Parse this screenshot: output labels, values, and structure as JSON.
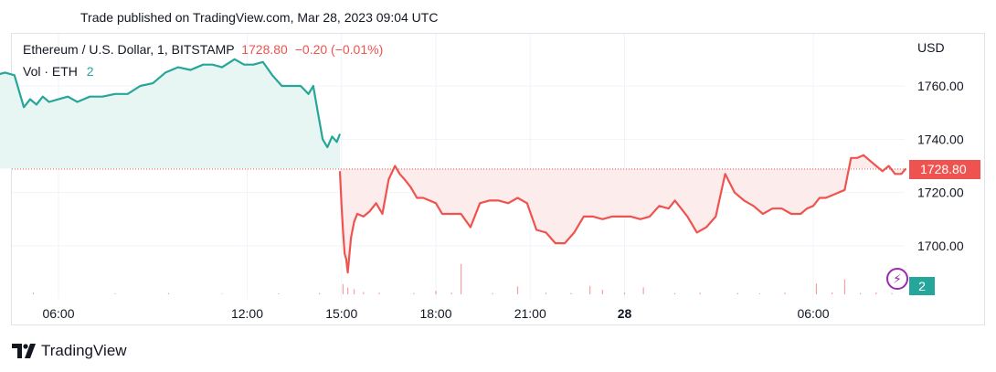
{
  "header": {
    "publish_text": "Trade published on TradingView.com, Mar 28, 2023 09:04 UTC"
  },
  "legend": {
    "symbol": "Ethereum / U.S. Dollar, 1, BITSTAMP",
    "price": "1728.80",
    "change": "−0.20 (−0.01%)",
    "vol_label": "Vol · ETH",
    "vol_value": "2"
  },
  "axis": {
    "currency": "USD"
  },
  "price_tag": "1728.80",
  "vol_tag": "2",
  "brand": {
    "name": "TradingView",
    "icon": "tradingview-logo-icon"
  },
  "indicator_icon": "lightning-icon",
  "colors": {
    "up": "#26a69a",
    "down": "#ef5350",
    "area_up": "#e7f5f3",
    "area_down": "#fdecec",
    "grid": "#f0f3fa",
    "accent": "#9c27b0"
  },
  "chart_data": {
    "type": "line",
    "title": "Ethereum / U.S. Dollar, 1, BITSTAMP",
    "xlabel": "",
    "ylabel": "USD",
    "ylim": [
      1682,
      1774
    ],
    "yticks": [
      1700,
      1720,
      1740,
      1760
    ],
    "ytick_labels": [
      "1700.00",
      "1720.00",
      "1740.00",
      "1760.00"
    ],
    "xticks": [
      {
        "label": "06:00",
        "time": "Mar 27 06:00",
        "hour": 6
      },
      {
        "label": "12:00",
        "time": "Mar 27 12:00",
        "hour": 12
      },
      {
        "label": "15:00",
        "time": "Mar 27 15:00",
        "hour": 15
      },
      {
        "label": "18:00",
        "time": "Mar 27 18:00",
        "hour": 18
      },
      {
        "label": "21:00",
        "time": "Mar 27 21:00",
        "hour": 21
      },
      {
        "label": "28",
        "time": "Mar 28 00:00",
        "hour": 24
      },
      {
        "label": "06:00",
        "time": "Mar 28 06:00",
        "hour": 30
      }
    ],
    "baseline": 1729.0,
    "last_price": 1728.8,
    "series": [
      {
        "x_hours": [
          3.5,
          3.8,
          4.0,
          4.3,
          4.6,
          4.9,
          5.1,
          5.3,
          5.5,
          5.7,
          6.0,
          6.3,
          6.6,
          7.0,
          7.4,
          7.8,
          8.2,
          8.6,
          9.0,
          9.4,
          9.8,
          10.2,
          10.6,
          10.9,
          11.2,
          11.6,
          11.9,
          12.2,
          12.5,
          12.8,
          13.1,
          13.4,
          13.7,
          13.95,
          14.1,
          14.25,
          14.4,
          14.55,
          14.7,
          14.85,
          14.95
        ],
        "values": [
          1769,
          1767,
          1764,
          1765,
          1764,
          1752,
          1755,
          1753,
          1756,
          1754,
          1755,
          1756,
          1754,
          1756,
          1756,
          1757,
          1757,
          1760,
          1761,
          1765,
          1767,
          1766,
          1768,
          1768,
          1767,
          1770,
          1768,
          1768,
          1769,
          1764,
          1760,
          1760,
          1760,
          1757,
          1760,
          1750,
          1740,
          1737,
          1741,
          1739,
          1742
        ]
      },
      {
        "x_hours": [
          14.95,
          15.0,
          15.05,
          15.1,
          15.15,
          15.2,
          15.3,
          15.4,
          15.5,
          15.7,
          15.9,
          16.1,
          16.3,
          16.5,
          16.7,
          16.85,
          17.0,
          17.2,
          17.4,
          17.6,
          17.8,
          18.0,
          18.2,
          18.5,
          18.8,
          19.1,
          19.4,
          19.7,
          20.0,
          20.3,
          20.6,
          20.9,
          21.2,
          21.5,
          21.8,
          22.1,
          22.4,
          22.7,
          23.0,
          23.3,
          23.6,
          23.9,
          24.2,
          24.5,
          24.8,
          25.1,
          25.4,
          25.6,
          25.8,
          26.0,
          26.3,
          26.6,
          26.9,
          27.2,
          27.5,
          27.8,
          28.1,
          28.4,
          28.7,
          29.0,
          29.3,
          29.6,
          29.8,
          30.0,
          30.2,
          30.4,
          30.6,
          30.8,
          31.0,
          31.2,
          31.4,
          31.6,
          31.8,
          32.0,
          32.2,
          32.4,
          32.6,
          32.8,
          32.95
        ],
        "values": [
          1728,
          1715,
          1705,
          1697,
          1695,
          1690,
          1703,
          1709,
          1712,
          1711,
          1713,
          1716,
          1712,
          1725,
          1730,
          1727,
          1725,
          1722,
          1718,
          1718,
          1717,
          1716,
          1712,
          1712,
          1712,
          1707,
          1716,
          1717,
          1717,
          1716,
          1718,
          1716,
          1706,
          1705,
          1701,
          1701,
          1705,
          1711,
          1711,
          1710,
          1711,
          1711,
          1711,
          1710,
          1711,
          1715,
          1714,
          1717,
          1714,
          1711,
          1705,
          1707,
          1711,
          1727,
          1720,
          1717,
          1715,
          1712,
          1714,
          1714,
          1712,
          1712,
          1714,
          1715,
          1718,
          1718,
          1719,
          1720,
          1721,
          1733,
          1733,
          1734,
          1732,
          1730,
          1728,
          1730,
          1727,
          1727,
          1729
        ]
      }
    ],
    "volume": {
      "x_hours": [
        4.0,
        5.2,
        7.8,
        9.5,
        11.2,
        13.0,
        14.3,
        15.05,
        15.2,
        15.4,
        15.7,
        16.2,
        17.3,
        18.0,
        18.5,
        18.8,
        19.8,
        20.6,
        21.5,
        22.3,
        22.9,
        23.3,
        24.0,
        24.6,
        25.6,
        26.4,
        27.6,
        28.3,
        29.1,
        30.1,
        30.6,
        31.0,
        31.5,
        32.0,
        32.5
      ],
      "values": [
        0.3,
        0.5,
        0.3,
        0.4,
        0.2,
        0.3,
        0.4,
        3.2,
        2.1,
        1.6,
        0.7,
        0.5,
        0.4,
        1.1,
        0.5,
        9.5,
        0.4,
        2.5,
        0.5,
        0.4,
        2.6,
        1.4,
        0.5,
        2.2,
        0.4,
        0.5,
        0.4,
        0.3,
        0.5,
        3.4,
        0.6,
        4.7,
        0.4,
        0.6,
        0.4
      ]
    }
  }
}
